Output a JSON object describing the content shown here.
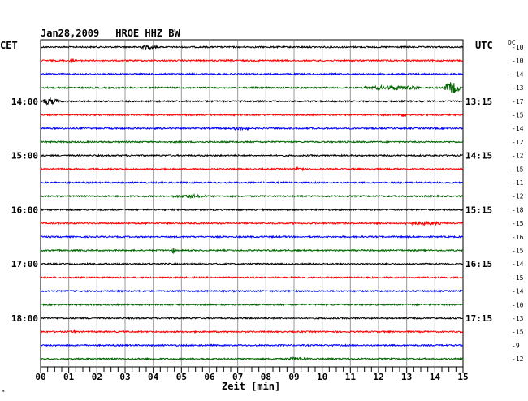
{
  "header": {
    "date": "Jan28,2009",
    "station": "HROE HHZ BW",
    "left_timezone": "CET",
    "right_timezone": "UTC",
    "dc_label": "DC",
    "corner_mark": "*"
  },
  "chart_data": {
    "type": "line",
    "title": "Jan28,2009   HROE HHZ BW",
    "xlabel": "Zeit [min]",
    "xlim": [
      0,
      15
    ],
    "x_ticks": [
      "00",
      "01",
      "02",
      "03",
      "04",
      "05",
      "06",
      "07",
      "08",
      "09",
      "10",
      "11",
      "12",
      "13",
      "14",
      "15"
    ],
    "grid": true,
    "trace_colors": [
      "#000000",
      "#ff0000",
      "#0000ff",
      "#006400"
    ],
    "rows": 24,
    "left_time_labels": [
      {
        "row": 4,
        "label": "14:00"
      },
      {
        "row": 8,
        "label": "15:00"
      },
      {
        "row": 12,
        "label": "16:00"
      },
      {
        "row": 16,
        "label": "17:00"
      },
      {
        "row": 20,
        "label": "18:00"
      }
    ],
    "right_time_labels": [
      {
        "row": 4,
        "label": "13:15"
      },
      {
        "row": 8,
        "label": "14:15"
      },
      {
        "row": 12,
        "label": "15:15"
      },
      {
        "row": 16,
        "label": "16:15"
      },
      {
        "row": 20,
        "label": "17:15"
      }
    ],
    "dc_offsets": [
      -10,
      -10,
      -14,
      -13,
      -17,
      -15,
      -14,
      -12,
      -12,
      -15,
      -11,
      -12,
      -18,
      -15,
      -16,
      -15,
      -14,
      -15,
      -14,
      -10,
      -13,
      -15,
      -9,
      -12
    ],
    "events": [
      {
        "row": 3,
        "minute": 12.5,
        "width": 2.0,
        "amp": 2.2
      },
      {
        "row": 3,
        "minute": 14.6,
        "width": 0.6,
        "amp": 7.0
      },
      {
        "row": 4,
        "minute": 0.3,
        "width": 0.8,
        "amp": 3.2
      },
      {
        "row": 0,
        "minute": 3.8,
        "width": 0.8,
        "amp": 1.6
      },
      {
        "row": 1,
        "minute": 1.1,
        "width": 0.15,
        "amp": 2.0
      },
      {
        "row": 5,
        "minute": 12.9,
        "width": 0.15,
        "amp": 2.6
      },
      {
        "row": 6,
        "minute": 7.1,
        "width": 0.6,
        "amp": 1.7
      },
      {
        "row": 9,
        "minute": 9.2,
        "width": 0.3,
        "amp": 2.6
      },
      {
        "row": 11,
        "minute": 5.3,
        "width": 1.2,
        "amp": 1.4
      },
      {
        "row": 13,
        "minute": 13.6,
        "width": 1.3,
        "amp": 1.7
      },
      {
        "row": 15,
        "minute": 4.7,
        "width": 0.1,
        "amp": 3.2
      },
      {
        "row": 21,
        "minute": 1.2,
        "width": 0.1,
        "amp": 2.4
      },
      {
        "row": 23,
        "minute": 9.1,
        "width": 0.8,
        "amp": 1.3
      }
    ]
  }
}
